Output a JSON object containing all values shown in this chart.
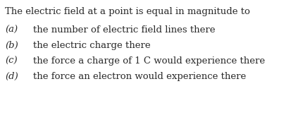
{
  "background_color": "#ffffff",
  "title_text": "The electric field at a point is equal in magnitude to",
  "items": [
    {
      "label": "(a)",
      "text": "the number of electric field lines there"
    },
    {
      "label": "(b)",
      "text": "the electric charge there"
    },
    {
      "label": "(c)",
      "text": "the force a charge of 1 C would experience there"
    },
    {
      "label": "(d)",
      "text": "the force an electron would experience there"
    }
  ],
  "fontfamily": "DejaVu Serif",
  "title_fontsize": 9.5,
  "item_fontsize": 9.5,
  "text_color": "#2a2a2a",
  "fig_width": 4.14,
  "fig_height": 1.63,
  "dpi": 100
}
